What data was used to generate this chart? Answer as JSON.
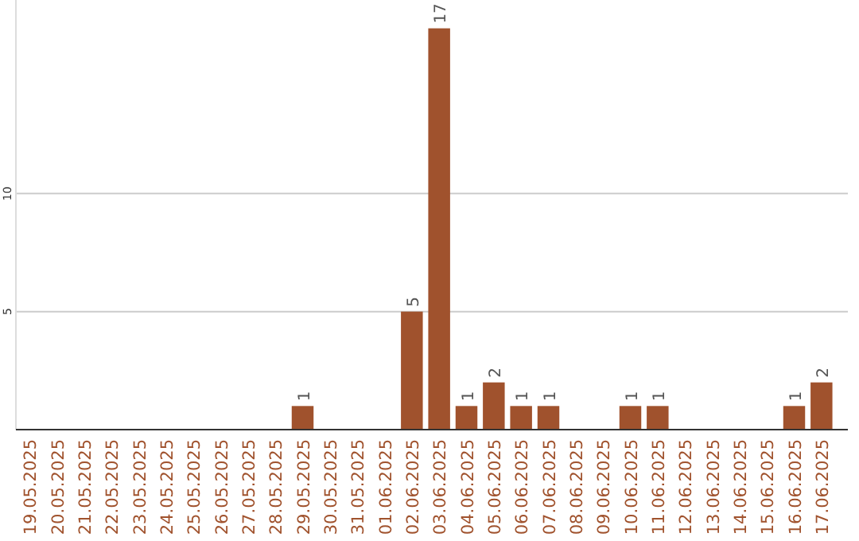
{
  "chart_data": {
    "type": "bar",
    "categories": [
      "19.05.2025",
      "20.05.2025",
      "21.05.2025",
      "22.05.2025",
      "23.05.2025",
      "24.05.2025",
      "25.05.2025",
      "26.05.2025",
      "27.05.2025",
      "28.05.2025",
      "29.05.2025",
      "30.05.2025",
      "31.05.2025",
      "01.06.2025",
      "02.06.2025",
      "03.06.2025",
      "04.06.2025",
      "05.06.2025",
      "06.06.2025",
      "07.06.2025",
      "08.06.2025",
      "09.06.2025",
      "10.06.2025",
      "11.06.2025",
      "12.06.2025",
      "13.06.2025",
      "14.06.2025",
      "15.06.2025",
      "16.06.2025",
      "17.06.2025"
    ],
    "values": [
      0,
      0,
      0,
      0,
      0,
      0,
      0,
      0,
      0,
      0,
      1,
      0,
      0,
      0,
      5,
      17,
      1,
      2,
      1,
      1,
      0,
      0,
      1,
      1,
      0,
      0,
      0,
      0,
      1,
      2
    ],
    "value_labels": [
      null,
      null,
      null,
      null,
      null,
      null,
      null,
      null,
      null,
      null,
      "1",
      null,
      null,
      null,
      "5",
      "17",
      "1",
      "2",
      "1",
      "1",
      null,
      null,
      "1",
      "1",
      null,
      null,
      null,
      null,
      "1",
      "2"
    ],
    "color": "#a0522d",
    "ylim": [
      0,
      18.2
    ],
    "yticks": [
      5,
      10
    ],
    "grid": "y"
  }
}
